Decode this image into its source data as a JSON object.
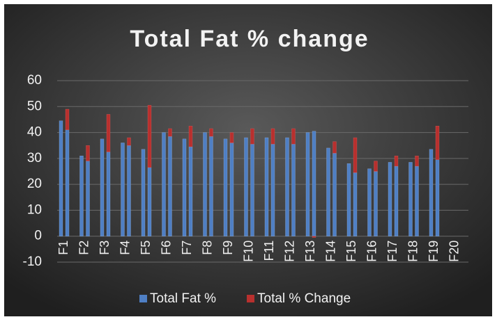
{
  "chart_data": {
    "type": "bar",
    "title": "Total Fat % change",
    "categories": [
      "F1",
      "F2",
      "F3",
      "F4",
      "F5",
      "F6",
      "F7",
      "F8",
      "F9",
      "F10",
      "F11",
      "F12",
      "F13",
      "F14",
      "F15",
      "F16",
      "F17",
      "F18",
      "F19",
      "F20"
    ],
    "series": [
      {
        "name": "Total Fat %",
        "color": "#4f7fc4",
        "values": [
          44.5,
          31,
          37.5,
          36,
          33.5,
          40,
          37.5,
          40,
          37.5,
          38,
          38,
          38,
          40,
          34,
          28,
          26,
          28.5,
          28.5,
          33.5,
          null
        ],
        "stacked_values": [
          41,
          29,
          32.5,
          35,
          26.5,
          38.5,
          34.5,
          38.5,
          36,
          35.5,
          35.5,
          35.5,
          40.5,
          32,
          24.5,
          25,
          27,
          27,
          29.5,
          null
        ]
      },
      {
        "name": "Total % Change",
        "color": "#b8302e",
        "values": [
          8,
          6,
          14.5,
          3,
          24,
          3,
          8,
          3,
          4,
          6,
          6,
          6,
          -0.5,
          4.5,
          13.5,
          4,
          4,
          4,
          13,
          null
        ]
      }
    ],
    "ylim": [
      -10,
      60
    ],
    "yticks": [
      -10,
      0,
      10,
      20,
      30,
      40,
      50,
      60
    ],
    "grid": true,
    "legend": "bottom"
  }
}
